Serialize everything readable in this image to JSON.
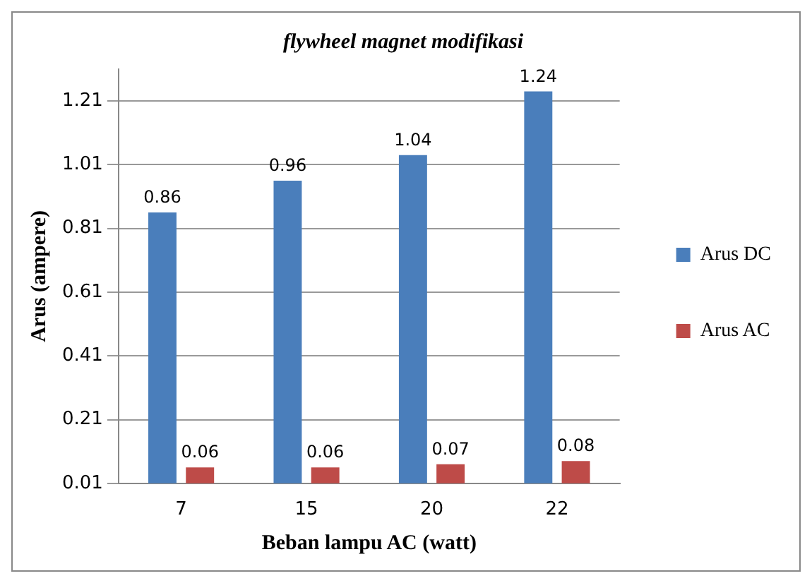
{
  "chart_data": {
    "type": "bar",
    "title": "flywheel magnet modifikasi",
    "xlabel": "Beban lampu AC (watt)",
    "ylabel": "Arus (ampere)",
    "categories": [
      "7",
      "15",
      "20",
      "22"
    ],
    "series": [
      {
        "name": "Arus DC",
        "color": "#4a7ebb",
        "values": [
          0.86,
          0.96,
          1.04,
          1.24
        ]
      },
      {
        "name": "Arus AC",
        "color": "#be4b48",
        "values": [
          0.06,
          0.06,
          0.07,
          0.08
        ]
      }
    ],
    "ylim": [
      0.01,
      1.31
    ],
    "yticks": [
      0.01,
      0.21,
      0.41,
      0.61,
      0.81,
      1.01,
      1.21
    ],
    "grid": "y",
    "legend": "right",
    "data_labels": true
  }
}
